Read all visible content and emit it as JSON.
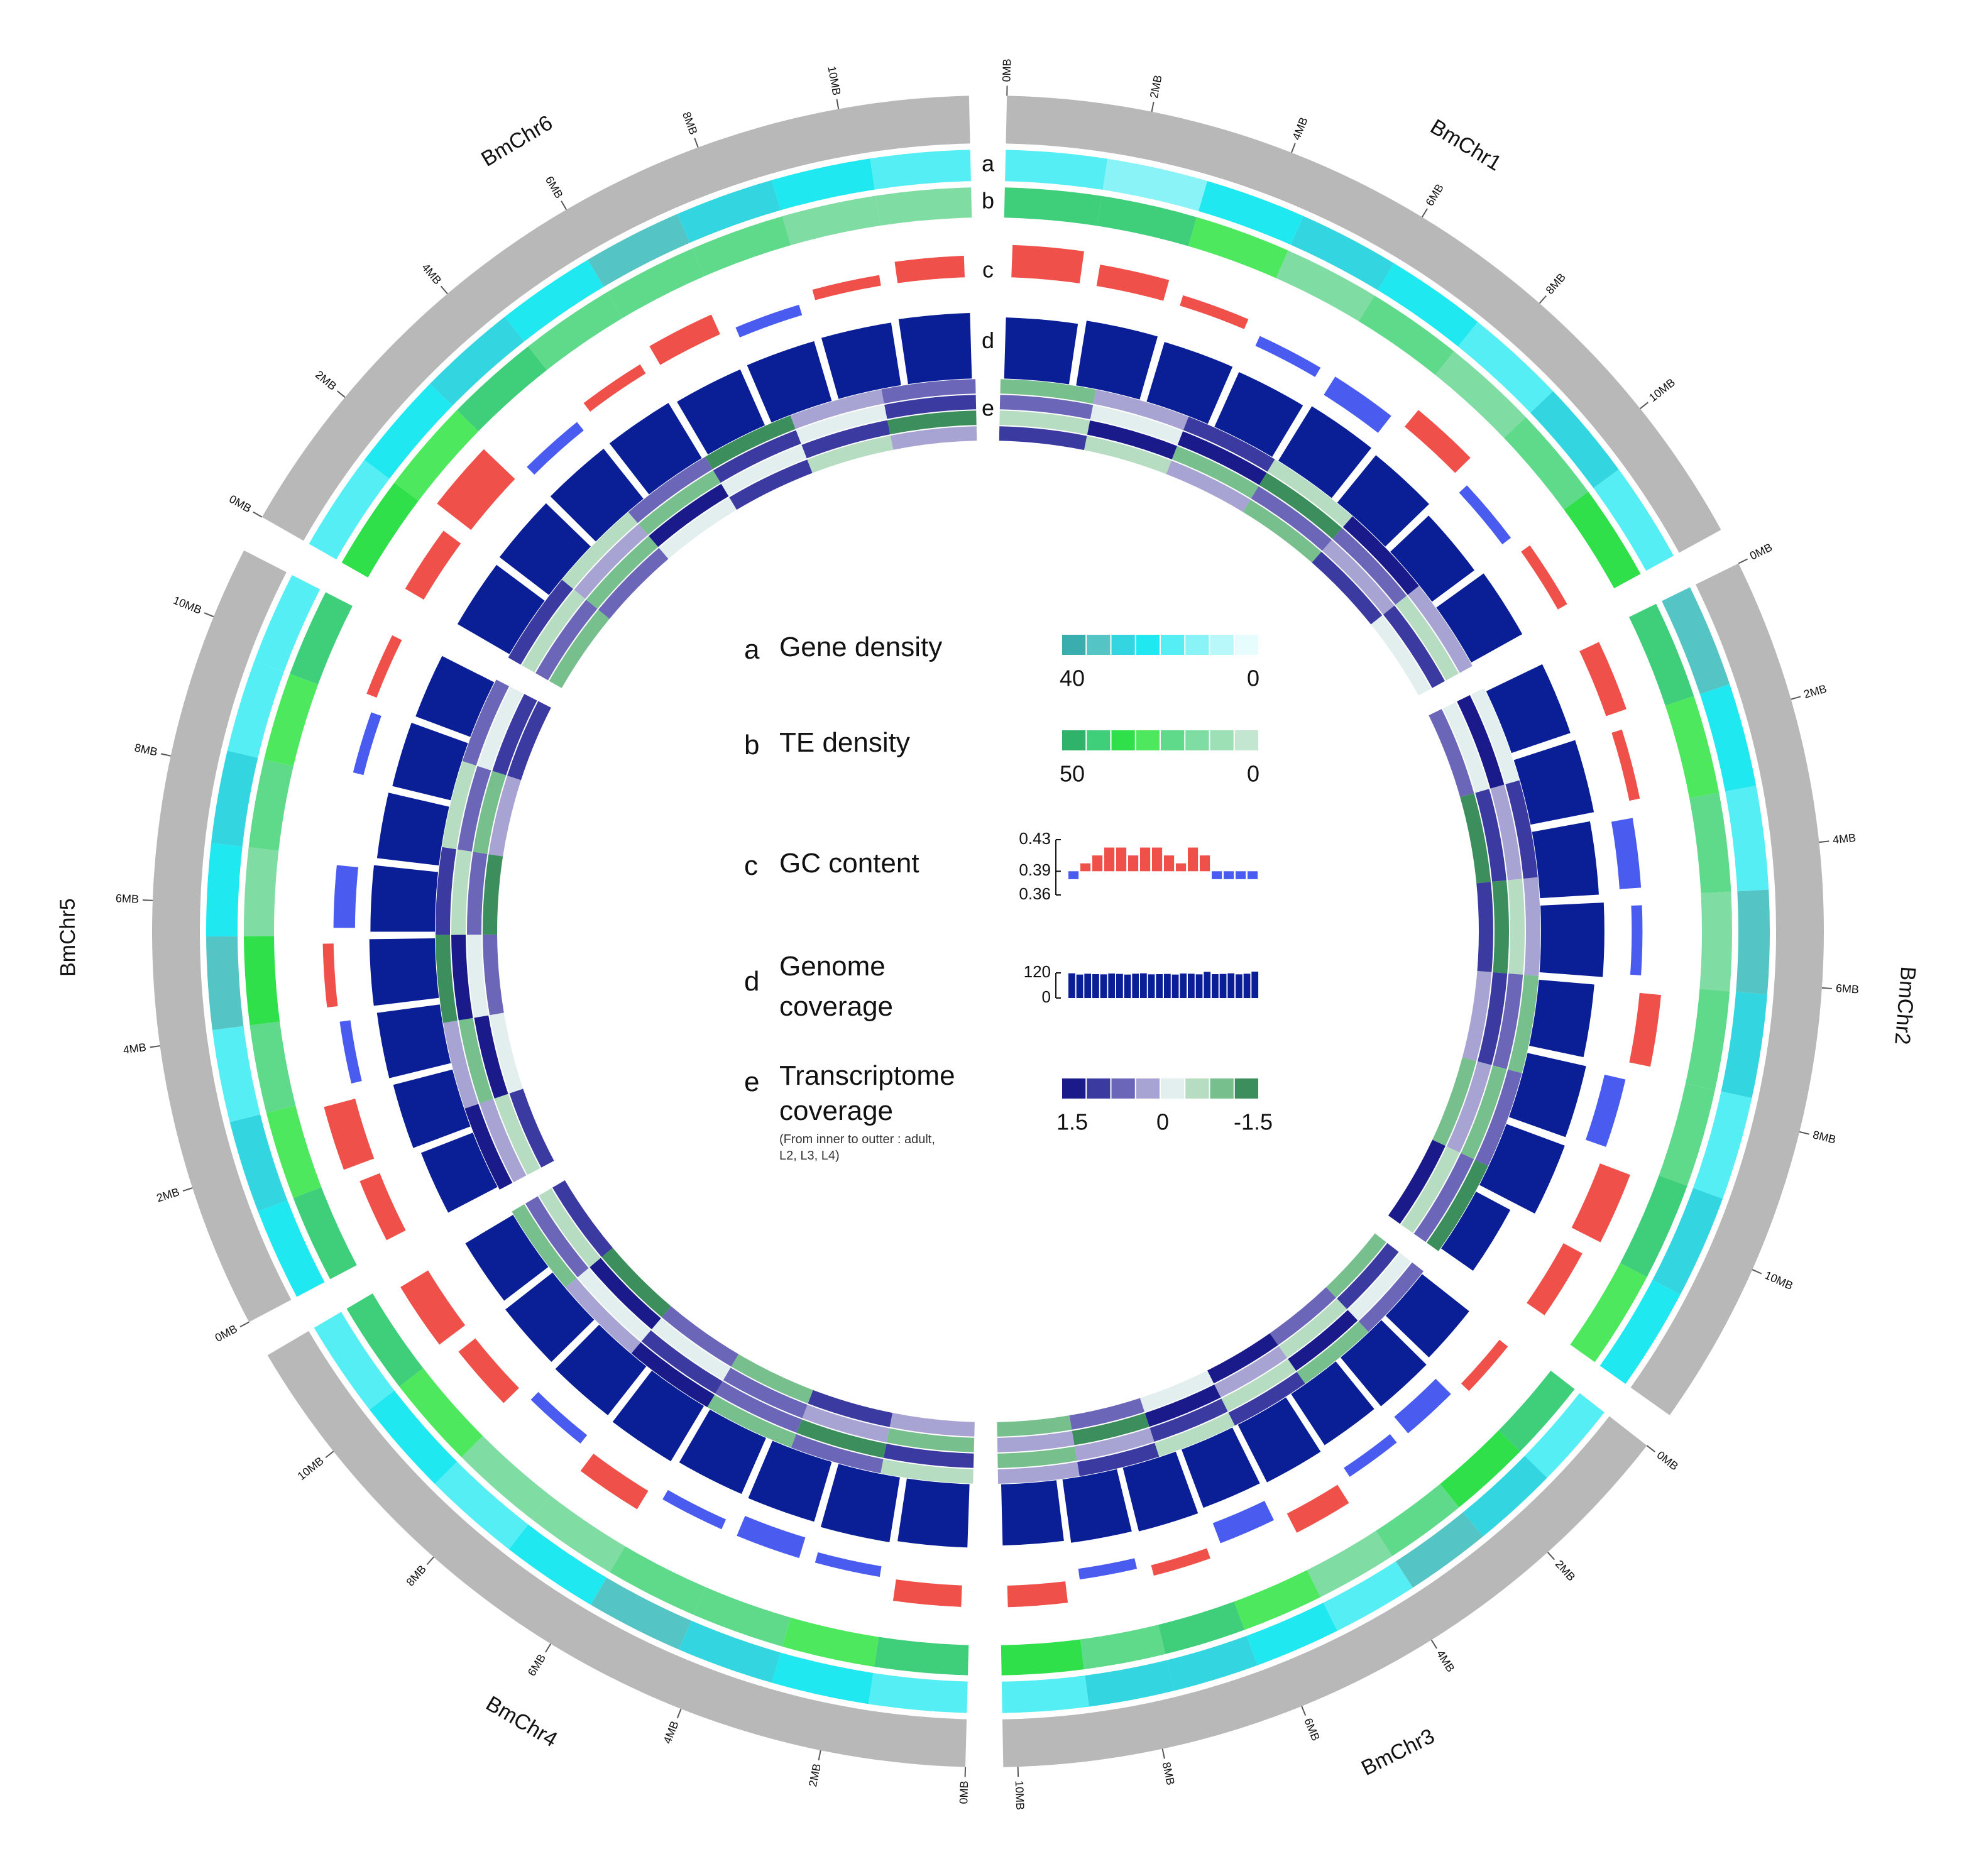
{
  "chart_data": {
    "type": "circos",
    "chromosomes": [
      {
        "name": "BmChr1",
        "length": 12.0,
        "ticks": [
          {
            "value": 0,
            "label": "0MB"
          },
          {
            "value": 2,
            "label": "2MB"
          },
          {
            "value": 4,
            "label": "4MB"
          },
          {
            "value": 6,
            "label": "6MB"
          },
          {
            "value": 8,
            "label": "8MB"
          },
          {
            "value": 10,
            "label": "10MB"
          }
        ],
        "a": [
          18,
          10,
          22,
          30,
          25,
          15,
          28,
          20
        ],
        "b": [
          40,
          45,
          30,
          12,
          20,
          15,
          25,
          38
        ],
        "c": [
          0.42,
          0.41,
          0.4,
          0.38,
          0.37,
          0.41,
          0.38,
          0.4
        ],
        "d": [
          110,
          118,
          112,
          108,
          115,
          110,
          95,
          105
        ],
        "e": [
          [
            1.2,
            -0.8,
            0.3,
            -1.2,
            0.9,
            -0.3
          ],
          [
            -0.5,
            1.4,
            -1.0,
            0.6,
            0.1,
            1.1
          ],
          [
            0.8,
            -0.2,
            1.3,
            -1.4,
            0.5,
            -0.7
          ],
          [
            -1.1,
            0.4,
            0.9,
            -0.6,
            1.5,
            0.2
          ]
        ]
      },
      {
        "name": "BmChr2",
        "length": 12.3,
        "ticks": [
          {
            "value": 0,
            "label": "0MB"
          },
          {
            "value": 2,
            "label": "2MB"
          },
          {
            "value": 4,
            "label": "4MB"
          },
          {
            "value": 6,
            "label": "6MB"
          },
          {
            "value": 8,
            "label": "8MB"
          },
          {
            "value": 10,
            "label": "10MB"
          }
        ],
        "a": [
          32,
          25,
          20,
          35,
          28,
          18,
          30,
          24
        ],
        "b": [
          42,
          30,
          20,
          15,
          25,
          18,
          40,
          28
        ],
        "c": [
          0.41,
          0.4,
          0.37,
          0.38,
          0.41,
          0.37,
          0.42,
          0.41
        ],
        "d": [
          112,
          116,
          106,
          114,
          100,
          108,
          112,
          70
        ],
        "e": [
          [
            0.6,
            -1.3,
            1.0,
            0.2,
            -0.9,
            1.4
          ],
          [
            -0.4,
            0.9,
            -1.5,
            1.1,
            0.3,
            -0.6
          ],
          [
            1.3,
            0.1,
            -0.8,
            0.7,
            -1.2,
            0.5
          ],
          [
            -0.2,
            1.2,
            0.4,
            -1.0,
            0.8,
            -1.4
          ]
        ]
      },
      {
        "name": "BmChr3",
        "length": 10.2,
        "ticks": [
          {
            "value": 0,
            "label": "0MB"
          },
          {
            "value": 2,
            "label": "2MB"
          },
          {
            "value": 4,
            "label": "4MB"
          },
          {
            "value": 6,
            "label": "6MB"
          },
          {
            "value": 8,
            "label": "8MB"
          },
          {
            "value": 10,
            "label": "10MB"
          }
        ],
        "a": [
          20,
          26,
          32,
          18,
          22,
          30,
          26,
          20
        ],
        "b": [
          45,
          35,
          20,
          12,
          30,
          42,
          25,
          35
        ],
        "c": [
          0.4,
          0.37,
          0.38,
          0.41,
          0.37,
          0.4,
          0.38,
          0.41
        ],
        "d": [
          108,
          114,
          110,
          116,
          112,
          118,
          115,
          110
        ],
        "e": [
          [
            -0.9,
            0.5,
            1.4,
            -0.3,
            0.7,
            -1.1
          ],
          [
            1.1,
            -0.6,
            0.2,
            1.3,
            -1.4,
            0.4
          ],
          [
            -0.3,
            1.5,
            -0.7,
            0.9,
            0.1,
            -1.2
          ],
          [
            0.7,
            -1.0,
            1.2,
            -0.5,
            1.0,
            0.3
          ]
        ]
      },
      {
        "name": "BmChr4",
        "length": 11.6,
        "ticks": [
          {
            "value": 0,
            "label": "0MB"
          },
          {
            "value": 2,
            "label": "2MB"
          },
          {
            "value": 4,
            "label": "4MB"
          },
          {
            "value": 6,
            "label": "6MB"
          },
          {
            "value": 8,
            "label": "8MB"
          },
          {
            "value": 10,
            "label": "10MB"
          }
        ],
        "a": [
          20,
          24,
          30,
          35,
          25,
          18,
          22,
          15
        ],
        "b": [
          45,
          30,
          18,
          22,
          15,
          12,
          30,
          40
        ],
        "c": [
          0.41,
          0.38,
          0.37,
          0.38,
          0.41,
          0.38,
          0.41,
          0.42
        ],
        "d": [
          114,
          118,
          112,
          110,
          116,
          112,
          108,
          100
        ],
        "e": [
          [
            0.4,
            1.2,
            -0.9,
            0.6,
            -1.3,
            1.0
          ],
          [
            -1.2,
            0.3,
            0.8,
            -0.4,
            1.4,
            -0.7
          ],
          [
            0.9,
            -1.4,
            0.5,
            1.1,
            -0.2,
            0.6
          ],
          [
            -0.6,
            0.7,
            -1.1,
            1.5,
            0.2,
            -0.9
          ]
        ]
      },
      {
        "name": "BmChr5",
        "length": 11.0,
        "ticks": [
          {
            "value": 0,
            "label": "0MB"
          },
          {
            "value": 2,
            "label": "2MB"
          },
          {
            "value": 4,
            "label": "4MB"
          },
          {
            "value": 6,
            "label": "6MB"
          },
          {
            "value": 8,
            "label": "8MB"
          },
          {
            "value": 10,
            "label": "10MB"
          }
        ],
        "a": [
          22,
          28,
          20,
          32,
          25,
          30,
          20,
          18
        ],
        "b": [
          40,
          30,
          20,
          35,
          15,
          25,
          30,
          40
        ],
        "c": [
          0.41,
          0.42,
          0.38,
          0.4,
          0.37,
          0.39,
          0.38,
          0.4
        ],
        "d": [
          100,
          110,
          114,
          118,
          116,
          112,
          108,
          105
        ],
        "e": [
          [
            1.0,
            -0.4,
            0.6,
            -1.5,
            0.3,
            1.2
          ],
          [
            -0.8,
            1.3,
            -0.2,
            0.5,
            -1.1,
            0.9
          ],
          [
            0.2,
            -0.9,
            1.4,
            -0.6,
            0.8,
            -0.3
          ],
          [
            1.4,
            0.1,
            -1.3,
            0.9,
            -0.5,
            0.6
          ]
        ]
      },
      {
        "name": "BmChr6",
        "length": 11.8,
        "ticks": [
          {
            "value": 0,
            "label": "0MB"
          },
          {
            "value": 2,
            "label": "2MB"
          },
          {
            "value": 4,
            "label": "4MB"
          },
          {
            "value": 6,
            "label": "6MB"
          },
          {
            "value": 8,
            "label": "8MB"
          },
          {
            "value": 10,
            "label": "10MB"
          }
        ],
        "a": [
          18,
          25,
          30,
          22,
          35,
          28,
          25,
          20
        ],
        "b": [
          38,
          30,
          45,
          18,
          25,
          20,
          12,
          15
        ],
        "c": [
          0.41,
          0.43,
          0.38,
          0.4,
          0.41,
          0.38,
          0.4,
          0.41
        ],
        "d": [
          108,
          112,
          115,
          116,
          110,
          112,
          114,
          118
        ],
        "e": [
          [
            -1.0,
            0.8,
            -0.3,
            1.1,
            -0.7,
            0.4
          ],
          [
            0.5,
            -1.2,
            1.5,
            -0.1,
            0.9,
            -1.4
          ],
          [
            -0.7,
            0.3,
            -1.0,
            1.2,
            -0.4,
            1.0
          ],
          [
            1.1,
            -0.5,
            0.6,
            -1.3,
            0.2,
            0.8
          ]
        ]
      }
    ],
    "tracks": [
      {
        "letter": "a",
        "label": "Gene density",
        "colors": [
          "#3aaeae",
          "#55c4c4",
          "#33d6e0",
          "#20e8f0",
          "#55eef5",
          "#8af3f7",
          "#b8f7fa",
          "#e6fcfd"
        ],
        "scale": [
          40,
          0
        ]
      },
      {
        "letter": "b",
        "label": "TE density",
        "colors": [
          "#2fb36a",
          "#3fcf7a",
          "#2fe04a",
          "#4ee85e",
          "#5fd98a",
          "#7fdca2",
          "#9ee0b5",
          "#c3e6d0"
        ],
        "scale": [
          50,
          0
        ]
      },
      {
        "letter": "c",
        "label": "GC content",
        "above_color": "#f0504a",
        "below_color": "#4a5cf0",
        "baseline": 0.39,
        "ylim": [
          0.36,
          0.43
        ],
        "yticks": [
          0.43,
          0.39,
          0.36
        ],
        "sample": [
          0.38,
          0.4,
          0.41,
          0.42,
          0.42,
          0.41,
          0.42,
          0.42,
          0.41,
          0.4,
          0.42,
          0.41,
          0.38,
          0.38,
          0.38,
          0.38
        ]
      },
      {
        "letter": "d",
        "label": "Genome coverage",
        "color": "#0a1f96",
        "ylim": [
          0,
          130
        ],
        "yticks": [
          120,
          0
        ],
        "sample": [
          118,
          112,
          116,
          114,
          113,
          117,
          115,
          112,
          116,
          118,
          113,
          114,
          115,
          112,
          117,
          116,
          113,
          125,
          114,
          115,
          118,
          113,
          116,
          126
        ]
      },
      {
        "letter": "e",
        "label": "Transcriptome coverage",
        "note": "(From inner to outter : adult, L2, L3, L4)",
        "colors": [
          "#1a1a8a",
          "#3b3aa0",
          "#6b66b8",
          "#a7a3d3",
          "#e3eeee",
          "#b6dcc2",
          "#78bf8e",
          "#3c8f5c"
        ],
        "scale": [
          1.5,
          0,
          -1.5
        ]
      }
    ]
  }
}
